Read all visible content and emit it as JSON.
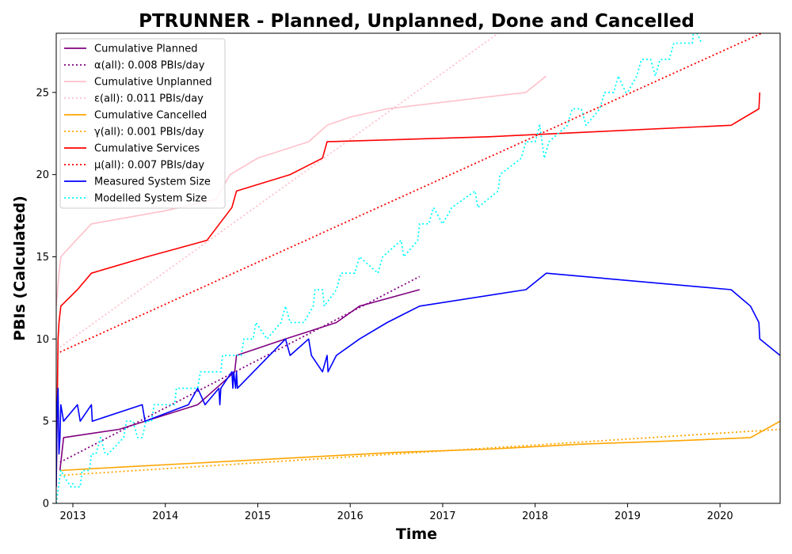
{
  "chart_data": {
    "type": "line",
    "title": "PTRUNNER - Planned, Unplanned, Done  and Cancelled",
    "xlabel": "Time",
    "ylabel": "PBIs (Calculated)",
    "xlim": [
      2012.82,
      2020.65
    ],
    "ylim": [
      0,
      28.6
    ],
    "x_ticks": [
      2013,
      2014,
      2015,
      2016,
      2017,
      2018,
      2019,
      2020
    ],
    "y_ticks": [
      0,
      5,
      10,
      15,
      20,
      25
    ],
    "grid": false,
    "legend_position": "top-left",
    "series": [
      {
        "name": "Cumulative Planned",
        "color": "#800080",
        "style": "solid",
        "x": [
          2012.86,
          2012.9,
          2013.5,
          2014.35,
          2014.75,
          2014.77,
          2015.3,
          2015.85,
          2016.1,
          2016.75
        ],
        "y": [
          2,
          4,
          4.5,
          6,
          8,
          9,
          10,
          11,
          12,
          13
        ]
      },
      {
        "name": "α(all): 0.008 PBIs/day",
        "color": "#800080",
        "style": "dotted",
        "x": [
          2012.86,
          2016.75
        ],
        "y": [
          2.5,
          13.8
        ]
      },
      {
        "name": "Cumulative Unplanned",
        "color": "#ffc0cb",
        "style": "solid",
        "x": [
          2012.82,
          2012.85,
          2012.87,
          2013.0,
          2013.2,
          2014.0,
          2014.55,
          2014.7,
          2015.0,
          2015.55,
          2015.75,
          2016.0,
          2016.4,
          2017.9,
          2018.12
        ],
        "y": [
          12,
          14,
          15,
          15.8,
          17,
          17.8,
          18.5,
          20,
          21,
          22,
          23,
          23.5,
          24,
          25,
          26
        ]
      },
      {
        "name": "ε(all): 0.011 PBIs/day",
        "color": "#ffc0cb",
        "style": "dotted",
        "x": [
          2012.86,
          2017.6
        ],
        "y": [
          9.5,
          28.6
        ]
      },
      {
        "name": "Cumulative Cancelled",
        "color": "#ffa500",
        "style": "solid",
        "x": [
          2012.86,
          2013.5,
          2014.5,
          2015.5,
          2016.5,
          2017.5,
          2018.5,
          2019.5,
          2020.33,
          2020.65
        ],
        "y": [
          2,
          2.2,
          2.5,
          2.8,
          3.1,
          3.3,
          3.6,
          3.8,
          4,
          5
        ]
      },
      {
        "name": "γ(all): 0.001 PBIs/day",
        "color": "#ffa500",
        "style": "dotted",
        "x": [
          2012.86,
          2020.65
        ],
        "y": [
          1.7,
          4.5
        ]
      },
      {
        "name": "Cumulative Services",
        "color": "#ff0000",
        "style": "solid",
        "x": [
          2012.82,
          2012.84,
          2012.85,
          2012.87,
          2013.05,
          2013.2,
          2013.8,
          2014.45,
          2014.72,
          2014.77,
          2015.35,
          2015.7,
          2015.75,
          2017.5,
          2020.12,
          2020.42,
          2020.43
        ],
        "y": [
          1,
          10,
          11,
          12,
          13,
          14,
          15,
          16,
          18,
          19,
          20,
          21,
          22,
          22.3,
          23,
          24,
          25
        ]
      },
      {
        "name": "μ(all): 0.007 PBIs/day",
        "color": "#ff0000",
        "style": "dotted",
        "x": [
          2012.86,
          2020.45
        ],
        "y": [
          9.2,
          28.6
        ]
      },
      {
        "name": "Measured System Size",
        "color": "#0000ff",
        "style": "solid",
        "x": [
          2012.82,
          2012.83,
          2012.84,
          2012.85,
          2012.86,
          2012.87,
          2012.9,
          2013.05,
          2013.08,
          2013.2,
          2013.21,
          2013.75,
          2013.78,
          2014.25,
          2014.35,
          2014.43,
          2014.58,
          2014.59,
          2014.6,
          2014.72,
          2014.73,
          2014.74,
          2014.76,
          2014.77,
          2014.78,
          2015.3,
          2015.35,
          2015.55,
          2015.58,
          2015.7,
          2015.75,
          2015.76,
          2015.85,
          2016.1,
          2016.4,
          2016.75,
          2017.9,
          2018.12,
          2020.12,
          2020.33,
          2020.42,
          2020.43,
          2020.65
        ],
        "y": [
          1,
          6,
          7,
          3,
          4,
          6,
          5,
          6,
          5,
          6,
          5,
          6,
          5,
          6,
          7,
          6,
          7,
          6,
          7,
          8,
          7,
          8,
          7,
          8,
          7,
          10,
          9,
          10,
          9,
          8,
          9,
          8,
          9,
          10,
          11,
          12,
          13,
          14,
          13,
          12,
          11,
          10,
          9
        ]
      },
      {
        "name": "Modelled System Size",
        "color": "#00ffff",
        "style": "dotted",
        "x": [
          2012.82,
          2012.87,
          2012.92,
          2012.98,
          2013.0,
          2013.02,
          2013.08,
          2013.1,
          2013.18,
          2013.2,
          2013.25,
          2013.3,
          2013.35,
          2013.38,
          2013.55,
          2013.58,
          2013.65,
          2013.7,
          2013.75,
          2013.79,
          2013.85,
          2013.88,
          2014.0,
          2014.1,
          2014.12,
          2014.35,
          2014.38,
          2014.6,
          2014.62,
          2014.82,
          2014.85,
          2014.95,
          2014.98,
          2015.1,
          2015.25,
          2015.3,
          2015.35,
          2015.5,
          2015.6,
          2015.62,
          2015.7,
          2015.72,
          2015.85,
          2015.9,
          2016.05,
          2016.1,
          2016.3,
          2016.35,
          2016.55,
          2016.58,
          2016.73,
          2016.75,
          2016.85,
          2016.9,
          2017.0,
          2017.1,
          2017.35,
          2017.38,
          2017.6,
          2017.62,
          2017.85,
          2017.9,
          2018.0,
          2018.05,
          2018.1,
          2018.15,
          2018.35,
          2018.4,
          2018.5,
          2018.55,
          2018.7,
          2018.75,
          2018.85,
          2018.9,
          2018.98,
          2019.0,
          2019.1,
          2019.15,
          2019.25,
          2019.3,
          2019.35,
          2019.45,
          2019.5,
          2019.7,
          2019.72,
          2019.8
        ],
        "y": [
          0,
          2,
          1.5,
          1,
          1.2,
          1,
          1,
          2,
          2,
          3,
          3,
          4,
          3,
          3,
          4,
          5,
          5,
          4,
          4,
          5,
          5,
          6,
          6,
          6,
          7,
          7,
          8,
          8,
          9,
          9,
          10,
          10,
          11,
          10,
          11,
          12,
          11,
          11,
          12,
          13,
          13,
          12,
          13,
          14,
          14,
          15,
          14,
          15,
          16,
          15,
          16,
          17,
          17,
          18,
          17,
          18,
          19,
          18,
          19,
          20,
          21,
          22,
          22,
          23,
          21,
          22,
          23,
          24,
          24,
          23,
          24,
          25,
          25,
          26,
          25,
          25,
          26,
          27,
          27,
          26,
          27,
          27,
          28,
          28,
          29,
          28
        ]
      }
    ]
  }
}
